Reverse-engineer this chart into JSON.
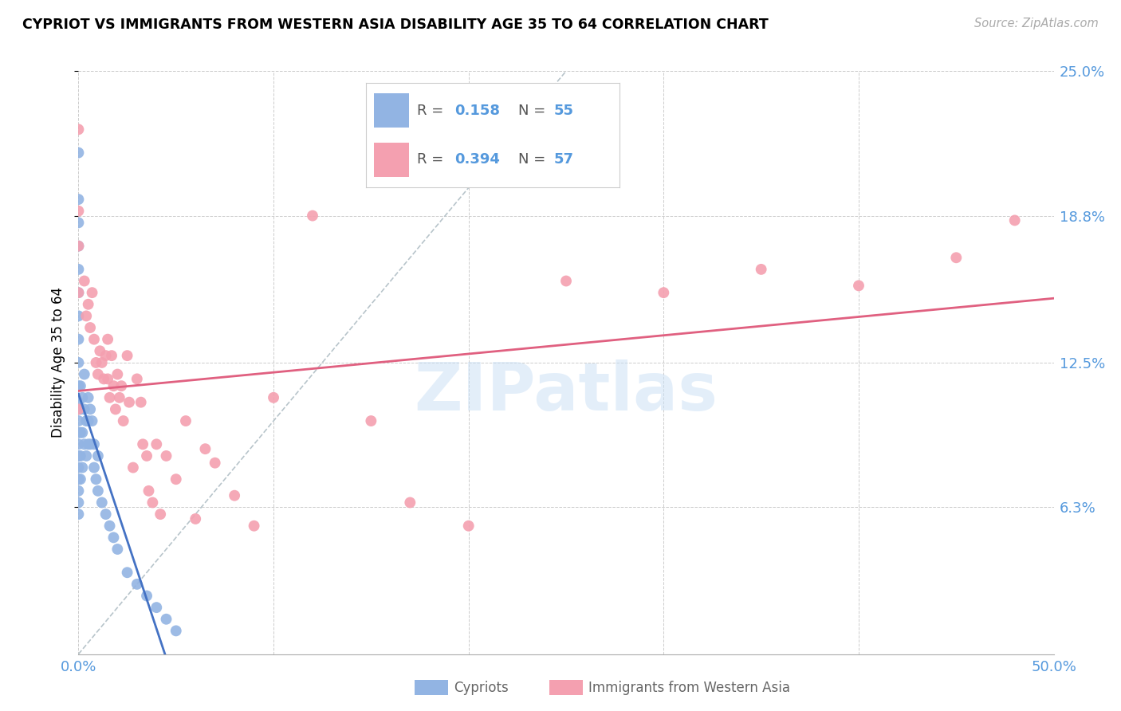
{
  "title": "CYPRIOT VS IMMIGRANTS FROM WESTERN ASIA DISABILITY AGE 35 TO 64 CORRELATION CHART",
  "source": "Source: ZipAtlas.com",
  "ylabel": "Disability Age 35 to 64",
  "label_cypriots": "Cypriots",
  "label_immigrants": "Immigrants from Western Asia",
  "xmin": 0.0,
  "xmax": 0.5,
  "ymin": 0.0,
  "ymax": 0.25,
  "legend_R1": "0.158",
  "legend_N1": "55",
  "legend_R2": "0.394",
  "legend_N2": "57",
  "color_cypriot": "#92b4e3",
  "color_immigrant": "#f4a0b0",
  "color_line_cypriot": "#4472c4",
  "color_line_immigrant": "#e06080",
  "color_diagonal": "#b0bec5",
  "watermark": "ZIPatlas",
  "cypriot_x": [
    0.0,
    0.0,
    0.0,
    0.0,
    0.0,
    0.0,
    0.0,
    0.0,
    0.0,
    0.0,
    0.0,
    0.0,
    0.0,
    0.0,
    0.0,
    0.0,
    0.0,
    0.0,
    0.0,
    0.0,
    0.001,
    0.001,
    0.001,
    0.001,
    0.001,
    0.002,
    0.002,
    0.002,
    0.003,
    0.003,
    0.003,
    0.004,
    0.004,
    0.005,
    0.005,
    0.005,
    0.006,
    0.006,
    0.007,
    0.008,
    0.008,
    0.009,
    0.01,
    0.01,
    0.012,
    0.014,
    0.016,
    0.018,
    0.02,
    0.025,
    0.03,
    0.035,
    0.04,
    0.045,
    0.05
  ],
  "cypriot_y": [
    0.215,
    0.195,
    0.185,
    0.175,
    0.165,
    0.155,
    0.145,
    0.135,
    0.125,
    0.115,
    0.108,
    0.1,
    0.095,
    0.09,
    0.085,
    0.08,
    0.075,
    0.07,
    0.065,
    0.06,
    0.115,
    0.105,
    0.095,
    0.085,
    0.075,
    0.11,
    0.095,
    0.08,
    0.12,
    0.105,
    0.09,
    0.1,
    0.085,
    0.11,
    0.1,
    0.09,
    0.105,
    0.09,
    0.1,
    0.09,
    0.08,
    0.075,
    0.085,
    0.07,
    0.065,
    0.06,
    0.055,
    0.05,
    0.045,
    0.035,
    0.03,
    0.025,
    0.02,
    0.015,
    0.01
  ],
  "immigrant_x": [
    0.0,
    0.0,
    0.0,
    0.0,
    0.0,
    0.003,
    0.004,
    0.005,
    0.006,
    0.007,
    0.008,
    0.009,
    0.01,
    0.011,
    0.012,
    0.013,
    0.014,
    0.015,
    0.015,
    0.016,
    0.017,
    0.018,
    0.019,
    0.02,
    0.021,
    0.022,
    0.023,
    0.025,
    0.026,
    0.028,
    0.03,
    0.032,
    0.033,
    0.035,
    0.036,
    0.038,
    0.04,
    0.042,
    0.045,
    0.05,
    0.055,
    0.06,
    0.065,
    0.07,
    0.08,
    0.09,
    0.1,
    0.12,
    0.15,
    0.17,
    0.2,
    0.25,
    0.3,
    0.35,
    0.4,
    0.45,
    0.48
  ],
  "immigrant_y": [
    0.225,
    0.19,
    0.175,
    0.155,
    0.105,
    0.16,
    0.145,
    0.15,
    0.14,
    0.155,
    0.135,
    0.125,
    0.12,
    0.13,
    0.125,
    0.118,
    0.128,
    0.135,
    0.118,
    0.11,
    0.128,
    0.115,
    0.105,
    0.12,
    0.11,
    0.115,
    0.1,
    0.128,
    0.108,
    0.08,
    0.118,
    0.108,
    0.09,
    0.085,
    0.07,
    0.065,
    0.09,
    0.06,
    0.085,
    0.075,
    0.1,
    0.058,
    0.088,
    0.082,
    0.068,
    0.055,
    0.11,
    0.188,
    0.1,
    0.065,
    0.055,
    0.16,
    0.155,
    0.165,
    0.158,
    0.17,
    0.186
  ]
}
